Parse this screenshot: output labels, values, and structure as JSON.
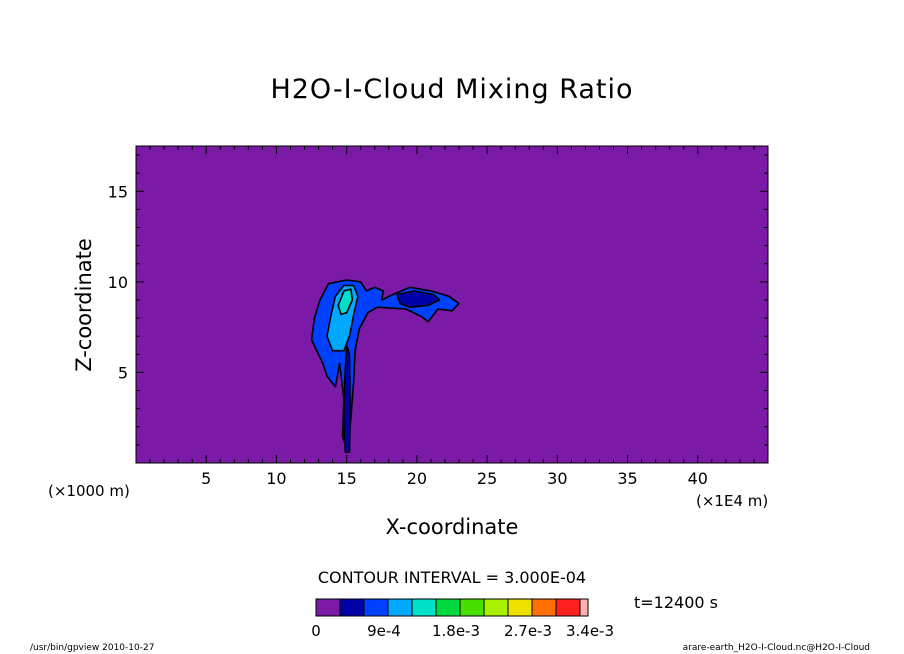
{
  "chart_data": {
    "type": "heatmap",
    "title": "H2O-I-Cloud Mixing Ratio",
    "xlabel": "X-coordinate",
    "ylabel": "Z-coordinate",
    "x_unit": "(×1E4 m)",
    "y_unit": "(×1000 m)",
    "xlim": [
      0,
      45
    ],
    "ylim": [
      0,
      17.5
    ],
    "x_ticks": [
      5,
      10,
      15,
      20,
      25,
      30,
      35,
      40
    ],
    "y_ticks": [
      5,
      10,
      15
    ],
    "contour_interval": "CONTOUR INTERVAL = 3.000E-04",
    "time": "t=12400 s",
    "colorbar": {
      "colors": [
        "#7a1aa6",
        "#0000a8",
        "#0040ff",
        "#00a8ff",
        "#00e0c8",
        "#00d840",
        "#48e000",
        "#a8f000",
        "#f0e000",
        "#ff7000",
        "#ff2020",
        "#ffb0b0"
      ],
      "labels": [
        "0",
        "9e-4",
        "1.8e-3",
        "2.7e-3",
        "3.4e-3"
      ]
    },
    "regions": [
      {
        "level": 1,
        "color": "#0040ff",
        "points": [
          [
            12.5,
            6.8
          ],
          [
            12.7,
            8.0
          ],
          [
            13.1,
            9.0
          ],
          [
            13.7,
            9.9
          ],
          [
            15.0,
            10.1
          ],
          [
            16.0,
            10.0
          ],
          [
            16.4,
            9.5
          ],
          [
            17.0,
            9.7
          ],
          [
            17.6,
            9.5
          ],
          [
            17.5,
            9.0
          ],
          [
            18.3,
            9.3
          ],
          [
            19.5,
            9.7
          ],
          [
            21.0,
            9.5
          ],
          [
            22.3,
            9.2
          ],
          [
            23.0,
            8.8
          ],
          [
            22.5,
            8.4
          ],
          [
            21.5,
            8.5
          ],
          [
            20.8,
            7.8
          ],
          [
            20.3,
            8.1
          ],
          [
            19.2,
            8.5
          ],
          [
            17.2,
            8.6
          ],
          [
            16.5,
            8.3
          ],
          [
            15.9,
            7.4
          ],
          [
            15.6,
            6.2
          ],
          [
            15.5,
            4.5
          ],
          [
            15.3,
            2.5
          ],
          [
            15.05,
            0.6
          ],
          [
            14.7,
            1.5
          ],
          [
            14.8,
            3.5
          ],
          [
            14.5,
            5.5
          ],
          [
            14.2,
            4.2
          ],
          [
            13.6,
            4.8
          ],
          [
            13.3,
            5.5
          ]
        ]
      },
      {
        "level": 2,
        "color": "#00a8ff",
        "points": [
          [
            13.6,
            7.0
          ],
          [
            13.9,
            8.2
          ],
          [
            14.2,
            9.2
          ],
          [
            14.8,
            9.8
          ],
          [
            15.5,
            9.8
          ],
          [
            15.8,
            9.2
          ],
          [
            15.5,
            8.2
          ],
          [
            15.2,
            7.0
          ],
          [
            14.8,
            6.2
          ],
          [
            14.0,
            6.2
          ]
        ]
      },
      {
        "level": 3,
        "color": "#00e0c8",
        "points": [
          [
            14.4,
            8.7
          ],
          [
            14.8,
            9.5
          ],
          [
            15.3,
            9.6
          ],
          [
            15.4,
            9.0
          ],
          [
            15.0,
            8.3
          ],
          [
            14.6,
            8.2
          ]
        ]
      },
      {
        "level": 1,
        "color": "#0000a8",
        "points": [
          [
            18.6,
            9.3
          ],
          [
            19.8,
            9.5
          ],
          [
            21.2,
            9.3
          ],
          [
            21.6,
            9.0
          ],
          [
            20.8,
            8.7
          ],
          [
            19.5,
            8.6
          ],
          [
            18.8,
            8.8
          ]
        ]
      },
      {
        "level": 1,
        "color": "#0000a8",
        "points": [
          [
            14.9,
            0.6
          ],
          [
            15.2,
            0.6
          ],
          [
            15.25,
            3.0
          ],
          [
            15.2,
            6.0
          ],
          [
            15.0,
            6.5
          ],
          [
            14.85,
            4.5
          ],
          [
            14.8,
            2.0
          ]
        ]
      }
    ]
  },
  "footer": {
    "left": "/usr/bin/gpview   2010-10-27",
    "right": "arare-earth_H2O-I-Cloud.nc@H2O-I-Cloud"
  }
}
